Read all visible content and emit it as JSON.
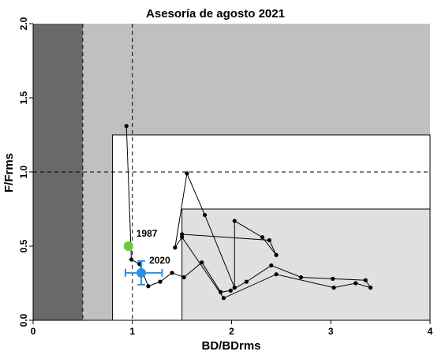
{
  "chart_data": {
    "type": "scatter",
    "title": "Asesoría de agosto 2021",
    "xlabel": "BD/BDrms",
    "ylabel": "F/Frms",
    "xlim": [
      0,
      4
    ],
    "ylim": [
      0,
      2
    ],
    "x_ticks": [
      "0",
      "1",
      "2",
      "3",
      "4"
    ],
    "y_ticks": [
      "0.0",
      "0.5",
      "1.0",
      "1.5",
      "2.0"
    ],
    "grid": false,
    "reference_lines": {
      "x": [
        0.5,
        1.0
      ],
      "y": [
        1.0
      ]
    },
    "regions": [
      {
        "x": [
          0,
          0.5
        ],
        "y": [
          0,
          2
        ],
        "color": "#696969"
      },
      {
        "x": [
          0.5,
          4
        ],
        "y": [
          0,
          2
        ],
        "color": "#c0c0c0"
      },
      {
        "x": [
          0.8,
          4
        ],
        "y": [
          0,
          1.25
        ],
        "color": "#ffffff"
      },
      {
        "x": [
          1.5,
          4
        ],
        "y": [
          0,
          0.75
        ],
        "color": "#e0e0e0"
      }
    ],
    "series": [
      {
        "values": [
          [
            0.94,
            1.31
          ],
          [
            0.99,
            0.41
          ],
          [
            1.07,
            0.38
          ],
          [
            1.16,
            0.23
          ],
          [
            1.28,
            0.26
          ],
          [
            1.4,
            0.32
          ],
          [
            1.52,
            0.29
          ],
          [
            1.7,
            0.39
          ],
          [
            1.89,
            0.19
          ],
          [
            1.99,
            0.2
          ],
          [
            2.15,
            0.26
          ],
          [
            2.4,
            0.37
          ],
          [
            2.7,
            0.29
          ],
          [
            3.02,
            0.28
          ],
          [
            3.35,
            0.27
          ],
          [
            3.4,
            0.22
          ],
          [
            3.25,
            0.25
          ],
          [
            3.03,
            0.22
          ],
          [
            2.45,
            0.31
          ],
          [
            1.92,
            0.15
          ],
          [
            1.5,
            0.56
          ],
          [
            1.43,
            0.49
          ],
          [
            1.55,
            0.99
          ],
          [
            1.73,
            0.71
          ],
          [
            2.03,
            0.22
          ],
          [
            2.03,
            0.67
          ],
          [
            2.31,
            0.56
          ],
          [
            2.45,
            0.44
          ],
          [
            2.38,
            0.54
          ],
          [
            1.5,
            0.58
          ]
        ],
        "color": "#000000"
      }
    ],
    "highlight_points": [
      {
        "label": "1987",
        "x": 0.96,
        "y": 0.5,
        "color": "#66cc33"
      },
      {
        "label": "2020",
        "x": 1.09,
        "y": 0.32,
        "color": "#2f8ee0",
        "x_err": [
          0.93,
          1.3
        ],
        "y_err": [
          0.24,
          0.4
        ]
      }
    ]
  }
}
